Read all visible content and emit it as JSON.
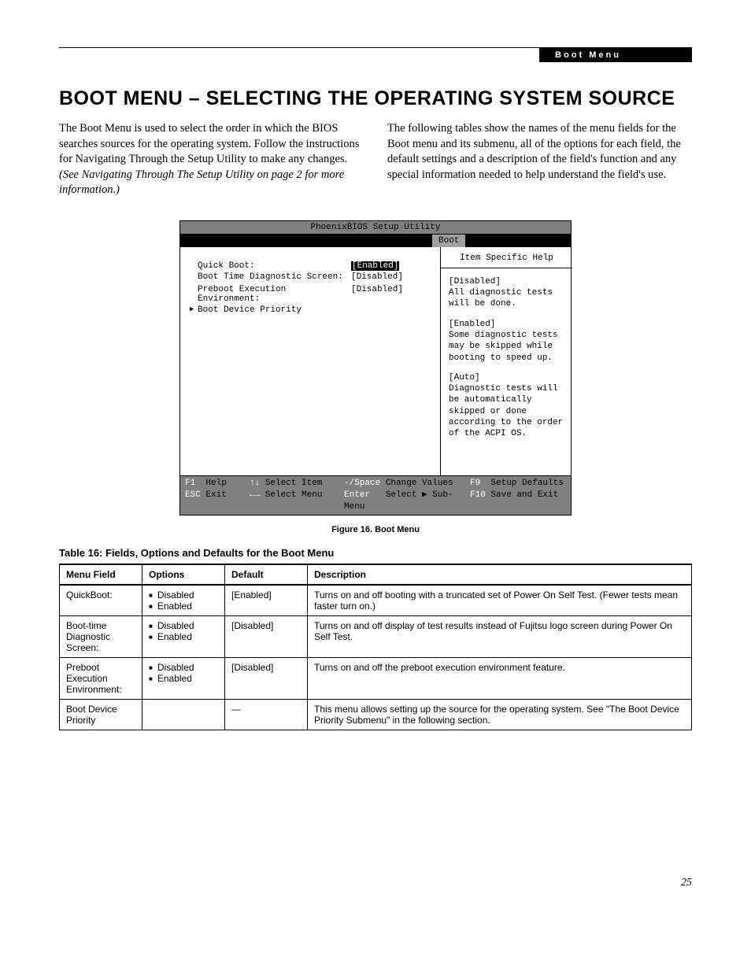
{
  "header": {
    "tab_label": "Boot Menu"
  },
  "title": "BOOT MENU – SELECTING THE OPERATING SYSTEM SOURCE",
  "intro": {
    "left_a": "The Boot Menu is used to select the order in which the BIOS searches sources for the operating system. Follow the instructions for Navigating Through the Setup Utility to make any changes. ",
    "left_b": "(See Navigating Through The Setup Utility on page 2 for more information.)",
    "right": "The following tables show the names of the menu fields for the Boot menu and its submenu, all of the options for each field, the default settings and a description of the field's function and any special information needed to help understand the field's use."
  },
  "bios": {
    "title": "PhoenixBIOS Setup Utility",
    "tab": "Boot",
    "rows": [
      {
        "label": "Quick Boot:",
        "value": "[Enabled]",
        "selected": true
      },
      {
        "label": "Boot Time Diagnostic Screen:",
        "value": "[Disabled]",
        "selected": false
      },
      {
        "label": "",
        "value": "",
        "selected": false
      },
      {
        "label": "Preboot Execution Environment:",
        "value": "[Disabled]",
        "selected": false
      }
    ],
    "submenu": "Boot Device Priority",
    "help_title": "Item Specific Help",
    "help": [
      "[Disabled]\nAll diagnostic tests will be done.",
      "[Enabled]\nSome diagnostic tests may be skipped while booting to speed up.",
      "[Auto]\nDiagnostic tests will be automatically skipped or done according to the order of the ACPI OS."
    ],
    "footer": {
      "r1": {
        "k1": "F1",
        "t1": "Help",
        "k2": "↑↓",
        "t2": "Select Item",
        "k3": "-/Space",
        "t3": "Change Values",
        "k4": "F9",
        "t4": "Setup Defaults"
      },
      "r2": {
        "k1": "ESC",
        "t1": "Exit",
        "k2": "←→",
        "t2": "Select Menu",
        "k3": "Enter",
        "t3": "Select ▶ Sub-Menu",
        "k4": "F10",
        "t4": "Save and Exit"
      }
    }
  },
  "figure_caption": "Figure 16.  Boot Menu",
  "table_caption": "Table 16: Fields, Options and Defaults for the Boot Menu",
  "table": {
    "headers": [
      "Menu Field",
      "Options",
      "Default",
      "Description"
    ],
    "rows": [
      {
        "field": "QuickBoot:",
        "options": [
          "Disabled",
          "Enabled"
        ],
        "default": "[Enabled]",
        "desc": "Turns on and off booting with a truncated set of Power On Self Test. (Fewer tests mean faster turn on.)"
      },
      {
        "field": "Boot-time Diagnostic Screen:",
        "options": [
          "Disabled",
          "Enabled"
        ],
        "default": "[Disabled]",
        "desc": "Turns on and off display of test results instead of Fujitsu logo screen during Power On Self Test."
      },
      {
        "field": "Preboot Execution Environment:",
        "options": [
          "Disabled",
          "Enabled"
        ],
        "default": "[Disabled]",
        "desc": "Turns on and off the preboot execution environment feature."
      },
      {
        "field": "Boot Device Priority",
        "options": [],
        "default": "—",
        "desc": "This menu allows setting up the source for the operating system. See \"The Boot Device Priority Submenu\" in the following section."
      }
    ]
  },
  "page_number": "25"
}
